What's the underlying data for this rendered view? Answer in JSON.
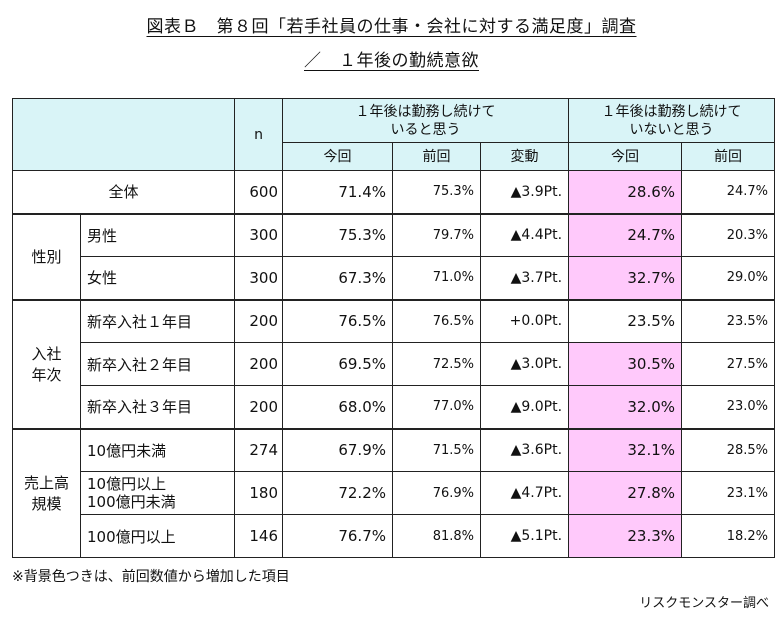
{
  "title_line1": "図表Ｂ　第８回「若手社員の仕事・会社に対する満足度」調査",
  "title_line2": "／　１年後の勤続意欲",
  "header": {
    "n": "n",
    "group_continue": "１年後は勤務し続けて\nいると思う",
    "group_not_continue": "１年後は勤務し続けて\nいないと思う",
    "current": "今回",
    "previous": "前回",
    "change": "変動"
  },
  "rows": {
    "all": {
      "label": "全体",
      "n": "600",
      "cur": "71.4%",
      "prev": "75.3%",
      "chg": "▲3.9Pt.",
      "ncur": "28.6%",
      "nprev": "24.7%"
    },
    "gender": {
      "category": "性別",
      "male": {
        "label": "男性",
        "n": "300",
        "cur": "75.3%",
        "prev": "79.7%",
        "chg": "▲4.4Pt.",
        "ncur": "24.7%",
        "nprev": "20.3%"
      },
      "female": {
        "label": "女性",
        "n": "300",
        "cur": "67.3%",
        "prev": "71.0%",
        "chg": "▲3.7Pt.",
        "ncur": "32.7%",
        "nprev": "29.0%"
      }
    },
    "year": {
      "category": "入社\n年次",
      "y1": {
        "label": "新卒入社１年目",
        "n": "200",
        "cur": "76.5%",
        "prev": "76.5%",
        "chg": "+0.0Pt.",
        "ncur": "23.5%",
        "nprev": "23.5%"
      },
      "y2": {
        "label": "新卒入社２年目",
        "n": "200",
        "cur": "69.5%",
        "prev": "72.5%",
        "chg": "▲3.0Pt.",
        "ncur": "30.5%",
        "nprev": "27.5%"
      },
      "y3": {
        "label": "新卒入社３年目",
        "n": "200",
        "cur": "68.0%",
        "prev": "77.0%",
        "chg": "▲9.0Pt.",
        "ncur": "32.0%",
        "nprev": "23.0%"
      }
    },
    "scale": {
      "category": "売上高\n規模",
      "s1": {
        "label": "10億円未満",
        "n": "274",
        "cur": "67.9%",
        "prev": "71.5%",
        "chg": "▲3.6Pt.",
        "ncur": "32.1%",
        "nprev": "28.5%"
      },
      "s2": {
        "label": "10億円以上\n100億円未満",
        "n": "180",
        "cur": "72.2%",
        "prev": "76.9%",
        "chg": "▲4.7Pt.",
        "ncur": "27.8%",
        "nprev": "23.1%"
      },
      "s3": {
        "label": "100億円以上",
        "n": "146",
        "cur": "76.7%",
        "prev": "81.8%",
        "chg": "▲5.1Pt.",
        "ncur": "23.3%",
        "nprev": "18.2%"
      }
    }
  },
  "highlight_color": "#ffc9fb",
  "header_color": "#d9f4f7",
  "footnote": "※背景色つきは、前回数値から増加した項目",
  "source": "リスクモンスター調べ"
}
